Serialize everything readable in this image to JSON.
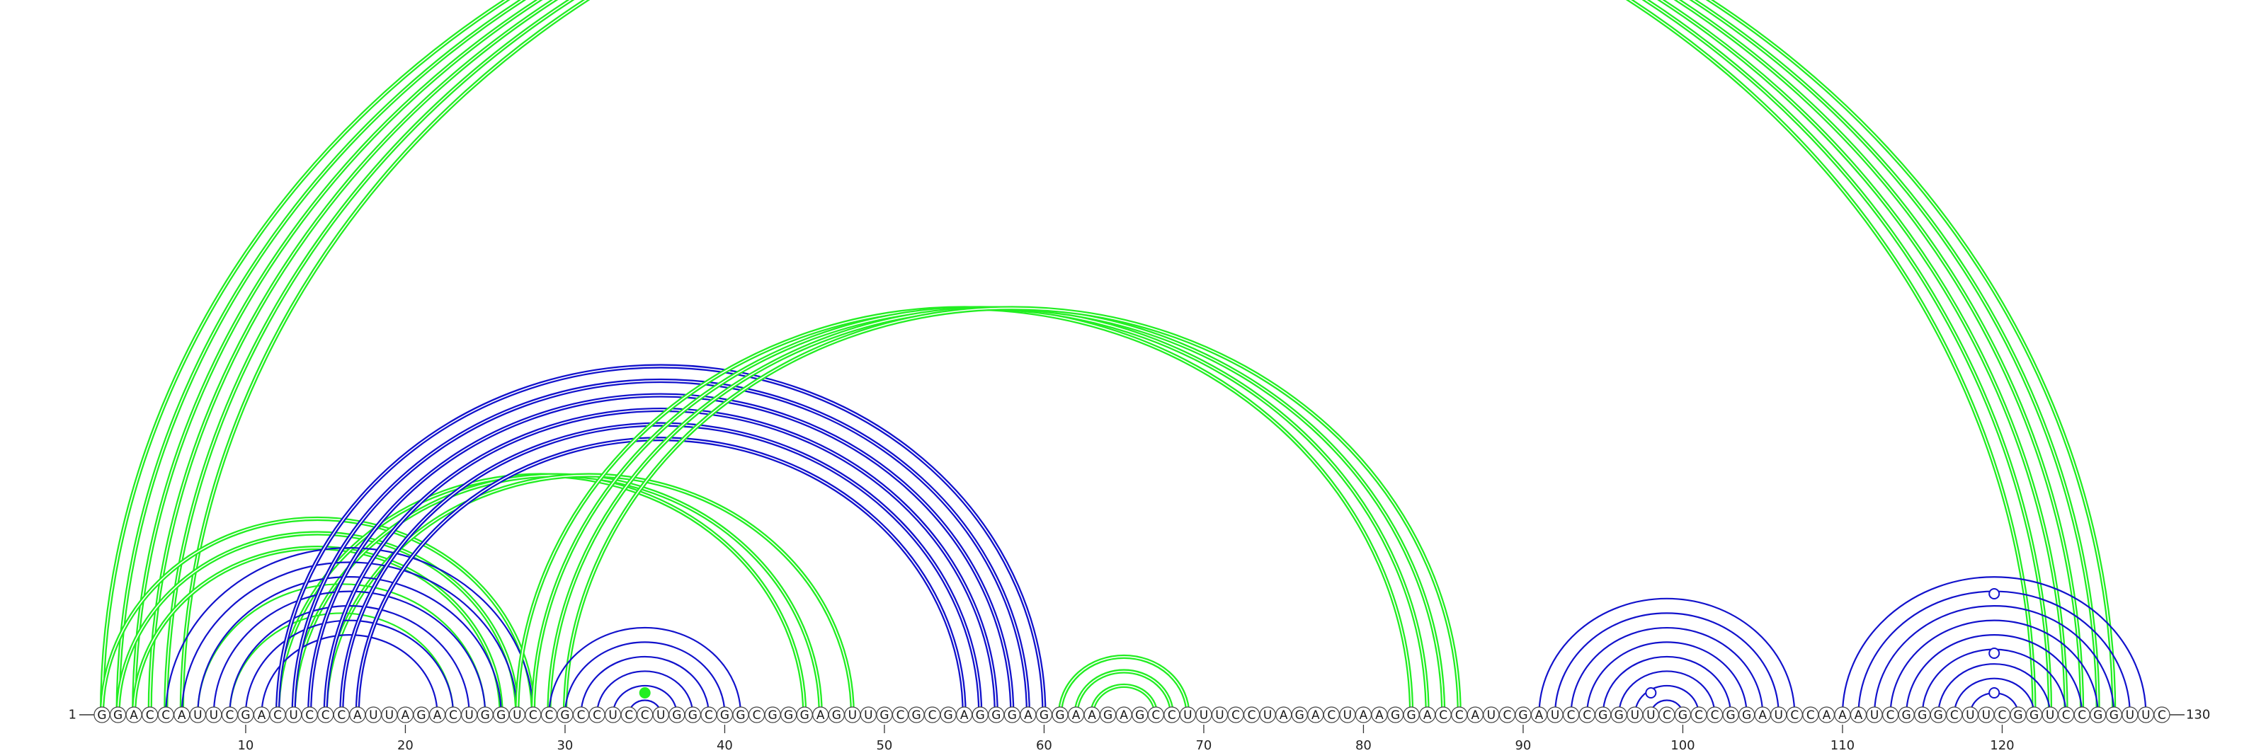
{
  "sequence": "GGACCAUUCGACUCCCAUUAGACUGGUCCGCCUCCUGGCGGCGGGAGUUGCGCGAGGGAGGAAGAGCCUUUCCUAGACUAAGGACCAUCGAUCCGGUUCGCCGGAUCCAAAUCGGGCUUCGGUCCGGUUC",
  "labels": {
    "start": "1",
    "end": "130"
  },
  "ticks": [
    "10",
    "20",
    "30",
    "40",
    "50",
    "60",
    "70",
    "80",
    "90",
    "100",
    "110",
    "120"
  ],
  "colors": {
    "green": "#22ee22",
    "blue": "#1212cc",
    "line": "#333333"
  },
  "arc_groups": [
    {
      "color": "green",
      "lines": 2,
      "pairs": [
        [
          1,
          122
        ],
        [
          2,
          123
        ],
        [
          3,
          124
        ],
        [
          4,
          125
        ],
        [
          5,
          126
        ],
        [
          6,
          127
        ]
      ]
    },
    {
      "color": "green",
      "lines": 2,
      "pairs": [
        [
          1,
          28
        ],
        [
          2,
          27
        ],
        [
          3,
          26
        ],
        [
          12,
          45
        ],
        [
          13,
          46
        ],
        [
          15,
          48
        ]
      ]
    },
    {
      "color": "green",
      "lines": 1,
      "pairs": [
        [
          7,
          25
        ],
        [
          9,
          23
        ]
      ]
    },
    {
      "color": "blue",
      "lines": 1,
      "pairs": [
        [
          5,
          28
        ],
        [
          6,
          27
        ],
        [
          7,
          26
        ],
        [
          8,
          25
        ],
        [
          9,
          24
        ],
        [
          10,
          23
        ],
        [
          11,
          22
        ]
      ]
    },
    {
      "color": "blue",
      "lines": 2,
      "pairs": [
        [
          12,
          60
        ],
        [
          13,
          59
        ],
        [
          14,
          58
        ],
        [
          15,
          57
        ],
        [
          16,
          56
        ],
        [
          17,
          55
        ]
      ]
    },
    {
      "color": "green",
      "lines": 2,
      "pairs": [
        [
          27,
          83
        ],
        [
          28,
          84
        ],
        [
          29,
          85
        ],
        [
          30,
          86
        ]
      ]
    },
    {
      "color": "blue",
      "lines": 1,
      "pairs": [
        [
          29,
          41
        ],
        [
          30,
          40
        ],
        [
          31,
          39
        ],
        [
          32,
          38
        ],
        [
          33,
          37
        ],
        [
          34,
          36
        ]
      ]
    },
    {
      "color": "green",
      "lines": 2,
      "pairs": [
        [
          61,
          69
        ],
        [
          62,
          68
        ],
        [
          63,
          67
        ]
      ]
    },
    {
      "color": "blue",
      "lines": 1,
      "pairs": [
        [
          91,
          107
        ],
        [
          92,
          106
        ],
        [
          93,
          105
        ],
        [
          94,
          104
        ],
        [
          95,
          103
        ],
        [
          96,
          102
        ],
        [
          97,
          101
        ],
        [
          98,
          100
        ]
      ]
    },
    {
      "color": "blue",
      "lines": 1,
      "pairs": [
        [
          110,
          129
        ],
        [
          111,
          128
        ],
        [
          112,
          127
        ],
        [
          113,
          126
        ],
        [
          114,
          125
        ],
        [
          115,
          124
        ],
        [
          116,
          123
        ],
        [
          117,
          122
        ],
        [
          118,
          121
        ]
      ]
    }
  ],
  "markers": [
    {
      "pos": 35,
      "color": "green",
      "fill": true,
      "level": 1
    },
    {
      "pos": 98,
      "color": "blue",
      "fill": false,
      "level": 1
    },
    {
      "pos": 119.5,
      "color": "blue",
      "fill": false,
      "level": 1
    },
    {
      "pos": 119.5,
      "color": "blue",
      "fill": false,
      "level": 3
    },
    {
      "pos": 119.5,
      "color": "blue",
      "fill": false,
      "level": 6
    }
  ]
}
